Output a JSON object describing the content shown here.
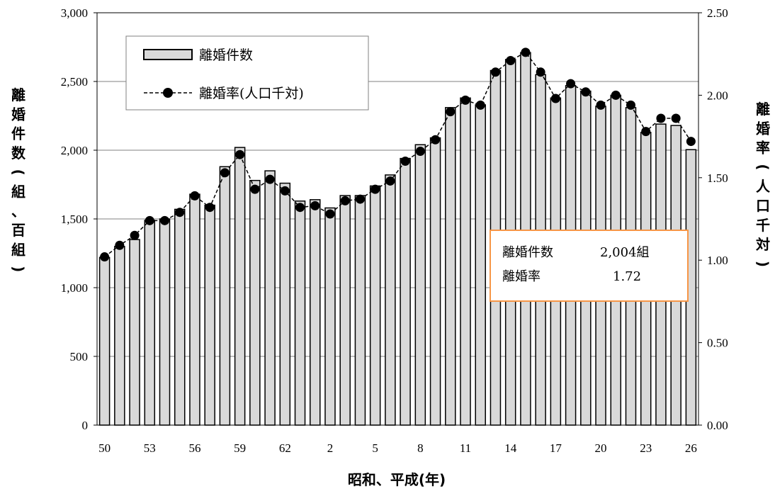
{
  "chart_data": {
    "type": "bar+line",
    "x_tick_labels": [
      "50",
      "53",
      "56",
      "59",
      "62",
      "2",
      "5",
      "8",
      "11",
      "14",
      "17",
      "20",
      "23",
      "26"
    ],
    "xlabel": "昭和、平成(年)",
    "ylabel_left": [
      "離",
      "婚",
      "件",
      "数",
      "(",
      "組",
      "、",
      "百",
      "組",
      ")"
    ],
    "ylabel_right": [
      "離",
      "婚",
      "率",
      "(",
      "人",
      "口",
      "千",
      "対",
      ")"
    ],
    "y_left_ticks": [
      "0",
      "500",
      "1,000",
      "1,500",
      "2,000",
      "2,500",
      "3,000"
    ],
    "y_right_ticks": [
      "0.00",
      "0.50",
      "1.00",
      "1.50",
      "2.00",
      "2.50"
    ],
    "y_left_lim": [
      0,
      3000
    ],
    "y_right_lim": [
      0,
      2.5
    ],
    "grid": "horizontal",
    "legend": {
      "position": "top-left",
      "bar_label": "離婚件数",
      "line_label": "離婚率(人口千対)"
    },
    "annotation": {
      "row1_label": "離婚件数",
      "row1_value": "2,004組",
      "row2_label": "離婚率",
      "row2_value": "1.72"
    },
    "series": [
      {
        "name": "離婚件数",
        "kind": "bar",
        "axis": "left",
        "values": [
          1220,
          1300,
          1350,
          1490,
          1500,
          1570,
          1680,
          1600,
          1880,
          2020,
          1780,
          1850,
          1760,
          1630,
          1640,
          1580,
          1670,
          1670,
          1740,
          1820,
          1940,
          2040,
          2090,
          2310,
          2380,
          2330,
          2580,
          2660,
          2710,
          2550,
          2380,
          2470,
          2430,
          2320,
          2400,
          2310,
          2130,
          2190,
          2180,
          2004
        ],
        "color": "#d9d9d9"
      },
      {
        "name": "離婚率(人口千対)",
        "kind": "line",
        "axis": "right",
        "values": [
          1.02,
          1.09,
          1.15,
          1.24,
          1.24,
          1.29,
          1.39,
          1.32,
          1.53,
          1.64,
          1.43,
          1.49,
          1.42,
          1.32,
          1.33,
          1.28,
          1.36,
          1.37,
          1.43,
          1.48,
          1.6,
          1.66,
          1.73,
          1.9,
          1.97,
          1.94,
          2.14,
          2.21,
          2.26,
          2.14,
          1.98,
          2.07,
          2.02,
          1.94,
          2.0,
          1.94,
          1.78,
          1.86,
          1.86,
          1.72
        ],
        "color": "#000000"
      }
    ]
  },
  "colors": {
    "bar_fill": "#d9d9d9",
    "annotation_border": "#f79646",
    "grid": "#808080"
  }
}
